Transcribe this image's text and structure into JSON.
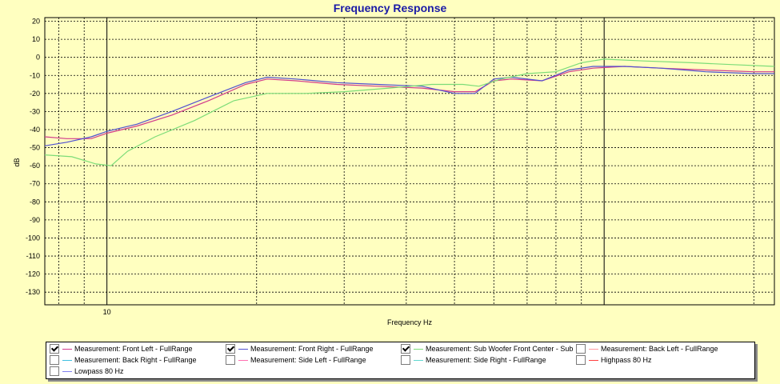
{
  "chart_data": {
    "type": "line",
    "title": "Frequency Response",
    "xlabel": "Frequency Hz",
    "ylabel": "dB",
    "xscale": "log",
    "xlim": [
      7.5,
      220
    ],
    "ylim": [
      -137,
      22
    ],
    "yticks": [
      20,
      10,
      0,
      -10,
      -20,
      -30,
      -40,
      -50,
      -60,
      -70,
      -80,
      -90,
      -100,
      -110,
      -120,
      -130
    ],
    "xtick_labels": [
      {
        "x": 10,
        "label": "10"
      }
    ],
    "grid": true,
    "series": [
      {
        "name": "Measurement: Front Left - FullRange",
        "color": "#d23c8c",
        "checked": true,
        "x": [
          7.5,
          8.3,
          9.3,
          10,
          11.5,
          13.5,
          16,
          19,
          21,
          24,
          29,
          35,
          43,
          50,
          55,
          60,
          65,
          75,
          85,
          95,
          110,
          130,
          160,
          200,
          220
        ],
        "y": [
          -44,
          -45,
          -45,
          -42,
          -38,
          -32,
          -24,
          -15,
          -12,
          -13,
          -15,
          -16,
          -17,
          -19,
          -19,
          -13,
          -12,
          -13,
          -8,
          -6,
          -5,
          -6,
          -7,
          -8,
          -8
        ]
      },
      {
        "name": "Measurement: Front Right - FullRange",
        "color": "#5050d0",
        "checked": true,
        "x": [
          7.5,
          8.3,
          9.3,
          10,
          11.5,
          13.5,
          16,
          19,
          21,
          24,
          29,
          35,
          43,
          50,
          55,
          60,
          65,
          75,
          85,
          95,
          110,
          130,
          160,
          200,
          220
        ],
        "y": [
          -49,
          -47,
          -44,
          -41,
          -37,
          -30,
          -22,
          -14,
          -11,
          -12,
          -14,
          -15,
          -16,
          -20,
          -20,
          -12,
          -11,
          -13,
          -7,
          -5,
          -5,
          -6,
          -8,
          -9,
          -9
        ]
      },
      {
        "name": "Measurement: Sub Woofer Front Center - Sub",
        "color": "#7cdc78",
        "checked": true,
        "x": [
          7.5,
          8.5,
          9.5,
          10.2,
          11,
          12.5,
          15,
          18,
          21,
          25,
          30,
          37,
          45,
          52,
          56,
          62,
          70,
          80,
          90,
          100,
          120,
          150,
          180,
          220
        ],
        "y": [
          -54,
          -55,
          -59,
          -60,
          -52,
          -44,
          -35,
          -24,
          -20,
          -20,
          -19,
          -17,
          -15,
          -15,
          -16,
          -12,
          -9,
          -8,
          -3,
          -1,
          -2,
          -3,
          -4,
          -5
        ]
      },
      {
        "name": "Measurement: Back Left - FullRange",
        "color": "#ff9aa0",
        "checked": false
      },
      {
        "name": "Measurement: Back Right - FullRange",
        "color": "#40c0e0",
        "checked": false
      },
      {
        "name": "Measurement: Side Left - FullRange",
        "color": "#ff70b0",
        "checked": false
      },
      {
        "name": "Measurement: Side Right - FullRange",
        "color": "#60d8d0",
        "checked": false
      },
      {
        "name": "Highpass   80 Hz",
        "color": "#ff4040",
        "checked": false
      },
      {
        "name": "Lowpass   80 Hz",
        "color": "#8080f0",
        "checked": false
      }
    ]
  }
}
